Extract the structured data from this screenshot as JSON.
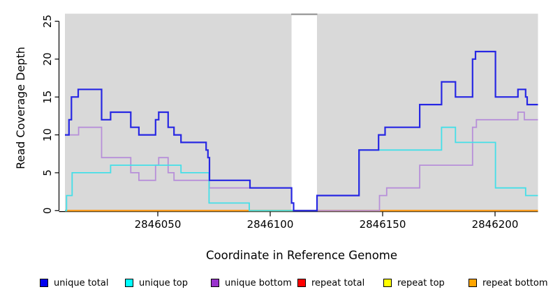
{
  "chart_data": {
    "type": "line",
    "subtype": "step-coverage-plot",
    "title": "",
    "xlabel": "Coordinate in Reference Genome",
    "ylabel": "Read Coverage Depth",
    "x_domain": [
      2846008.7,
      2846219.1
    ],
    "y_domain": [
      0,
      26
    ],
    "x_ticks": [
      2846050,
      2846100,
      2846150,
      2846200
    ],
    "y_ticks": [
      0,
      5,
      10,
      15,
      20,
      25
    ],
    "grid": false,
    "panel_bg": "#d9d9d9",
    "axis_color": "#000000",
    "no_data_gap": {
      "start": 2846109.5,
      "end": 2846120.8,
      "fill": "#ffffff",
      "cap_color": "#8a8a8a"
    },
    "legend_position": "bottom",
    "legend_order": [
      "unique total",
      "unique top",
      "unique bottom",
      "repeat total",
      "repeat top",
      "repeat bottom"
    ],
    "draw_order": [
      "repeat total",
      "repeat top",
      "repeat bottom",
      "unique bottom",
      "unique top",
      "unique total"
    ],
    "series": [
      {
        "name": "unique total",
        "line_color": "#2727e3",
        "swatch_color": "#0000ee",
        "line_width": 2.2,
        "steps": [
          [
            2846008.7,
            10
          ],
          [
            2846010.5,
            12
          ],
          [
            2846011.6,
            15
          ],
          [
            2846014.6,
            16
          ],
          [
            2846025,
            12
          ],
          [
            2846029,
            13
          ],
          [
            2846038,
            11
          ],
          [
            2846041.6,
            10
          ],
          [
            2846049,
            12
          ],
          [
            2846050.4,
            13
          ],
          [
            2846054.6,
            11
          ],
          [
            2846057.2,
            10
          ],
          [
            2846060.3,
            9
          ],
          [
            2846071.5,
            8
          ],
          [
            2846072.3,
            7
          ],
          [
            2846073,
            4
          ],
          [
            2846091,
            3
          ],
          [
            2846109.5,
            1
          ],
          [
            2846110.4,
            0
          ],
          [
            2846120.8,
            2
          ],
          [
            2846139.5,
            8
          ],
          [
            2846148.2,
            10
          ],
          [
            2846151.1,
            11
          ],
          [
            2846166.5,
            14
          ],
          [
            2846176.2,
            17
          ],
          [
            2846182.4,
            15
          ],
          [
            2846190,
            20
          ],
          [
            2846191.3,
            21
          ],
          [
            2846200.2,
            15
          ],
          [
            2846210.2,
            16
          ],
          [
            2846213.6,
            15
          ],
          [
            2846214.3,
            14
          ]
        ]
      },
      {
        "name": "unique top",
        "line_color": "#44dfe8",
        "swatch_color": "#00ffff",
        "line_width": 1.8,
        "steps": [
          [
            2846008.7,
            0
          ],
          [
            2846009.4,
            2
          ],
          [
            2846011.9,
            5
          ],
          [
            2846029,
            6
          ],
          [
            2846060.3,
            5
          ],
          [
            2846072.8,
            1
          ],
          [
            2846090.7,
            0
          ],
          [
            2846120.8,
            2
          ],
          [
            2846139.5,
            8
          ],
          [
            2846176.2,
            11
          ],
          [
            2846182.4,
            9
          ],
          [
            2846200.2,
            3
          ],
          [
            2846213.6,
            2
          ]
        ]
      },
      {
        "name": "unique bottom",
        "line_color": "#b78fd9",
        "swatch_color": "#9932cc",
        "line_width": 1.8,
        "steps": [
          [
            2846008.7,
            10
          ],
          [
            2846014.8,
            11
          ],
          [
            2846025,
            7
          ],
          [
            2846038,
            5
          ],
          [
            2846041.6,
            4
          ],
          [
            2846049,
            6
          ],
          [
            2846050.4,
            7
          ],
          [
            2846054.6,
            5
          ],
          [
            2846057.2,
            4
          ],
          [
            2846072.9,
            3
          ],
          [
            2846109.5,
            1
          ],
          [
            2846110.4,
            0
          ],
          [
            2846148.6,
            2
          ],
          [
            2846151.8,
            3
          ],
          [
            2846166.5,
            6
          ],
          [
            2846190,
            11
          ],
          [
            2846191.7,
            12
          ],
          [
            2846210.2,
            13
          ],
          [
            2846213,
            12
          ]
        ]
      },
      {
        "name": "repeat total",
        "line_color": "#e00000",
        "swatch_color": "#ff0000",
        "line_width": 1.8,
        "steps": [
          [
            2846008.7,
            0
          ]
        ]
      },
      {
        "name": "repeat top",
        "line_color": "#ffff00",
        "swatch_color": "#ffff00",
        "line_width": 1.8,
        "steps": [
          [
            2846008.7,
            0
          ]
        ]
      },
      {
        "name": "repeat bottom",
        "line_color": "#ff9d1e",
        "swatch_color": "#ffa500",
        "line_width": 2,
        "steps": [
          [
            2846008.7,
            0
          ]
        ]
      }
    ]
  }
}
